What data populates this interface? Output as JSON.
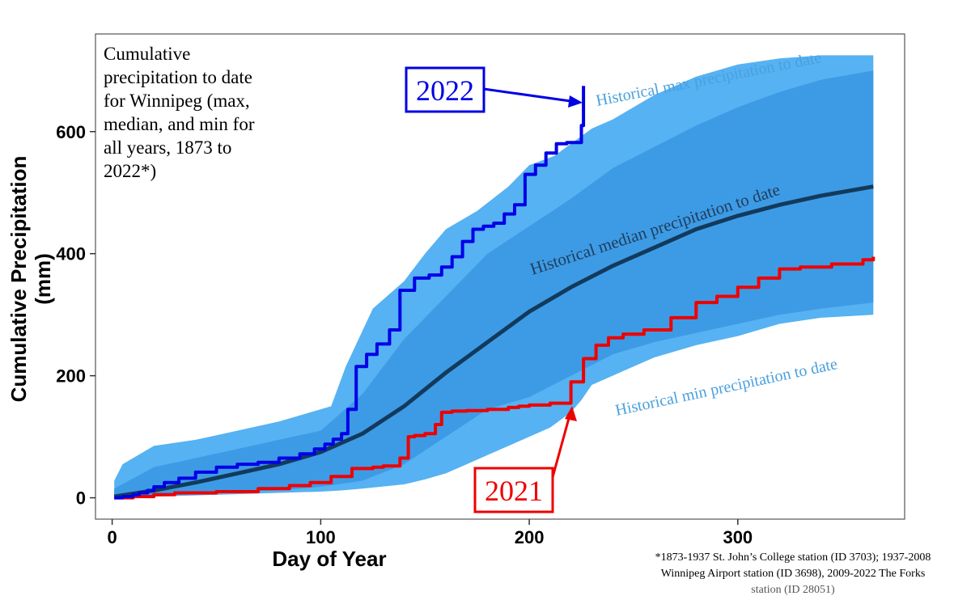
{
  "chart_data": {
    "type": "line",
    "title": "Cumulative precipitation to date for Winnipeg (max, median, and min for all years, 1873 to 2022*)",
    "title_lines": [
      "Cumulative",
      "precipitation to date",
      "for Winnipeg (max,",
      "median, and min for",
      "all years, 1873 to",
      "2022*)"
    ],
    "xlabel": "Day of Year",
    "ylabel_lines": [
      "Cumulative Precipitation",
      "(mm)"
    ],
    "xlim": [
      -8,
      380
    ],
    "ylim": [
      -35,
      760
    ],
    "xticks": [
      0,
      100,
      200,
      300
    ],
    "yticks": [
      0,
      200,
      400,
      600
    ],
    "grid": false,
    "colors": {
      "band_outer": "#56b2f2",
      "band_inner": "#3d9be6",
      "median": "#133a5c",
      "year_2022": "#0000e6",
      "year_2021": "#ee0000",
      "band_label": "#4aa0de",
      "median_label": "#1f3d5a"
    },
    "band_max": {
      "x": [
        1,
        5,
        20,
        40,
        60,
        80,
        95,
        105,
        112,
        125,
        140,
        150,
        160,
        175,
        190,
        200,
        212,
        220,
        230,
        240,
        250,
        260,
        280,
        300,
        320,
        340,
        365
      ],
      "y": [
        28,
        55,
        85,
        95,
        110,
        125,
        140,
        150,
        215,
        310,
        355,
        400,
        440,
        470,
        510,
        545,
        560,
        580,
        605,
        620,
        640,
        660,
        690,
        710,
        720,
        725,
        725
      ]
    },
    "band_inner_top": {
      "x": [
        1,
        20,
        40,
        60,
        80,
        100,
        120,
        140,
        160,
        180,
        200,
        220,
        240,
        260,
        280,
        300,
        320,
        340,
        365
      ],
      "y": [
        15,
        50,
        65,
        80,
        95,
        110,
        170,
        260,
        330,
        400,
        445,
        490,
        540,
        575,
        610,
        640,
        665,
        685,
        700
      ]
    },
    "band_inner_bottom": {
      "x": [
        1,
        20,
        40,
        60,
        80,
        100,
        120,
        140,
        160,
        180,
        200,
        220,
        240,
        260,
        280,
        300,
        320,
        340,
        365
      ],
      "y": [
        0,
        3,
        6,
        10,
        12,
        18,
        28,
        55,
        100,
        145,
        165,
        200,
        235,
        255,
        270,
        285,
        300,
        310,
        320
      ]
    },
    "band_min": {
      "x": [
        1,
        20,
        40,
        60,
        80,
        100,
        110,
        120,
        140,
        150,
        160,
        170,
        180,
        200,
        210,
        220,
        225,
        230,
        240,
        250,
        260,
        280,
        300,
        320,
        340,
        365
      ],
      "y": [
        0,
        2,
        4,
        6,
        8,
        10,
        12,
        15,
        22,
        30,
        40,
        55,
        70,
        100,
        115,
        140,
        160,
        185,
        200,
        215,
        230,
        250,
        265,
        285,
        295,
        300
      ]
    },
    "series": [
      {
        "name": "Historical median precipitation to date",
        "x": [
          1,
          20,
          40,
          60,
          80,
          100,
          120,
          140,
          160,
          180,
          200,
          220,
          240,
          260,
          280,
          300,
          320,
          340,
          365
        ],
        "y": [
          2,
          12,
          25,
          40,
          55,
          75,
          105,
          150,
          205,
          255,
          305,
          345,
          380,
          410,
          440,
          462,
          480,
          495,
          510
        ]
      },
      {
        "name": "2022",
        "step": true,
        "x": [
          1,
          5,
          10,
          13,
          17,
          20,
          25,
          32,
          40,
          50,
          60,
          70,
          80,
          90,
          97,
          102,
          106,
          110,
          113,
          117,
          122,
          127,
          133,
          138,
          145,
          152,
          158,
          163,
          168,
          173,
          178,
          183,
          188,
          193,
          198,
          203,
          208,
          213,
          218,
          222,
          224,
          225,
          226
        ],
        "y": [
          0,
          2,
          5,
          8,
          12,
          18,
          25,
          32,
          42,
          50,
          55,
          58,
          65,
          72,
          80,
          88,
          96,
          105,
          145,
          215,
          235,
          252,
          275,
          340,
          360,
          365,
          378,
          395,
          420,
          440,
          445,
          450,
          465,
          480,
          530,
          545,
          565,
          580,
          582,
          582,
          582,
          610,
          675
        ]
      },
      {
        "name": "2021",
        "step": true,
        "x": [
          1,
          10,
          20,
          30,
          50,
          70,
          85,
          95,
          105,
          115,
          125,
          130,
          138,
          142,
          145,
          150,
          155,
          158,
          163,
          170,
          180,
          190,
          195,
          200,
          210,
          220,
          226,
          232,
          238,
          245,
          255,
          268,
          280,
          290,
          300,
          310,
          320,
          330,
          345,
          360,
          365
        ],
        "y": [
          0,
          2,
          5,
          8,
          10,
          15,
          20,
          25,
          35,
          48,
          50,
          52,
          65,
          100,
          102,
          105,
          120,
          140,
          142,
          143,
          145,
          148,
          150,
          152,
          155,
          190,
          228,
          250,
          262,
          268,
          275,
          295,
          320,
          330,
          345,
          360,
          375,
          378,
          383,
          390,
          395
        ]
      }
    ],
    "annotations": {
      "label_2022": "2022",
      "label_2021": "2021",
      "band_max_label": "Historical max precipitation to date",
      "median_label": "Historical median precipitation to date",
      "band_min_label": "Historical min precipitation to date"
    },
    "footnote": {
      "line1": "*1873-1937  St. John’s College station (ID 3703);  1937-2008",
      "line2": "Winnipeg Airport station (ID 3698),  2009-2022  The Forks",
      "line3": "station (ID 28051)"
    }
  }
}
